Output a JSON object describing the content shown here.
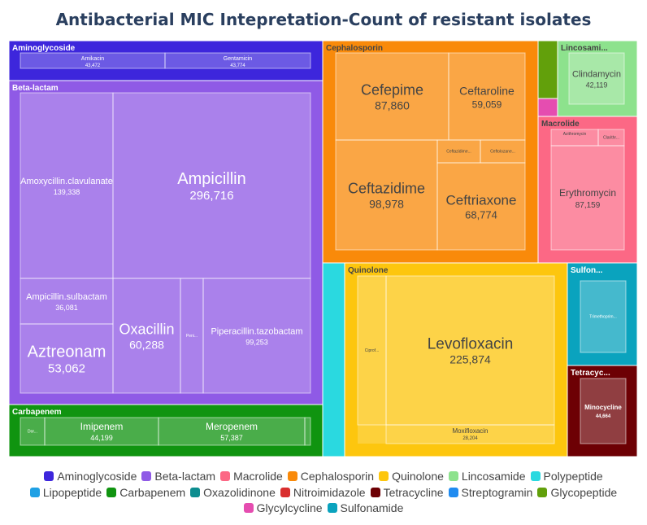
{
  "title": "Antibacterial MIC Intepretation-Count of resistant isolates",
  "chart_data": {
    "type": "treemap",
    "measure": "Count of resistant isolates",
    "groups": [
      {
        "name": "Aminoglycoside",
        "label": "Aminoglycoside",
        "color": "#3d26dc",
        "children": [
          {
            "name": "Amikacin",
            "value": 43472
          },
          {
            "name": "Gentamicin",
            "value": 43774
          }
        ]
      },
      {
        "name": "Beta-lactam",
        "label": "Beta-lactam",
        "color": "#8f5ae6",
        "children": [
          {
            "name": "Amoxycillin.clavulanate",
            "value": 139338
          },
          {
            "name": "Ampicillin",
            "value": 296716
          },
          {
            "name": "Ampicillin.sulbactam",
            "value": 36081
          },
          {
            "name": "Aztreonam",
            "value": 53062
          },
          {
            "name": "Oxacillin",
            "value": 60288
          },
          {
            "name": "Peni...",
            "value": null
          },
          {
            "name": "Piperacillin.tazobactam",
            "value": 99253
          }
        ]
      },
      {
        "name": "Carbapenem",
        "label": "Carbapenem",
        "color": "#109410",
        "children": [
          {
            "name": "Dor...",
            "value": null
          },
          {
            "name": "Imipenem",
            "value": 44199
          },
          {
            "name": "Meropenem",
            "value": 57387
          },
          {
            "name": "",
            "value": null
          }
        ]
      },
      {
        "name": "Cephalosporin",
        "label": "Cephalosporin",
        "color": "#f98a0a",
        "children": [
          {
            "name": "Cefepime",
            "value": 87860
          },
          {
            "name": "Ceftaroline",
            "value": 59059
          },
          {
            "name": "Ceftazidime",
            "value": 98978
          },
          {
            "name": "Ceftazidime...",
            "value": null
          },
          {
            "name": "Ceftolozane...",
            "value": null
          },
          {
            "name": "Ceftriaxone",
            "value": 68774
          }
        ]
      },
      {
        "name": "Glycopeptide",
        "label": "",
        "color": "#62a00b",
        "children": []
      },
      {
        "name": "Glycylcycline",
        "label": "",
        "color": "#e54db0",
        "children": []
      },
      {
        "name": "Lincosamide",
        "label": "Lincosami...",
        "color": "#8de28d",
        "children": [
          {
            "name": "Clindamycin",
            "value": 42119
          }
        ]
      },
      {
        "name": "Macrolide",
        "label": "Macrolide",
        "color": "#fc6885",
        "children": [
          {
            "name": "Azithromycin",
            "value": null
          },
          {
            "name": "Clarithr...",
            "value": null
          },
          {
            "name": "Erythromycin",
            "value": 87159
          }
        ]
      },
      {
        "name": "Polypeptide",
        "label": "",
        "color": "#2ad9e0",
        "children": []
      },
      {
        "name": "Quinolone",
        "label": "Quinolone",
        "color": "#fdc60e",
        "children": [
          {
            "name": "Ciprof...",
            "value": null
          },
          {
            "name": "Levofloxacin",
            "value": 225874
          },
          {
            "name": "Moxifloxacin",
            "value": 28204
          }
        ]
      },
      {
        "name": "Sulfonamide",
        "label": "Sulfon...",
        "color": "#0aa3be",
        "children": [
          {
            "name": "Trimethoprim...",
            "value": null
          }
        ]
      },
      {
        "name": "Tetracycline",
        "label": "Tetracyc...",
        "color": "#6d0004",
        "children": [
          {
            "name": "Minocycline",
            "value": 44664
          }
        ]
      }
    ],
    "legend": [
      {
        "name": "Aminoglycoside",
        "color": "#3d26dc"
      },
      {
        "name": "Beta-lactam",
        "color": "#8f5ae6"
      },
      {
        "name": "Macrolide",
        "color": "#fc6885"
      },
      {
        "name": "Cephalosporin",
        "color": "#f98a0a"
      },
      {
        "name": "Quinolone",
        "color": "#fdc60e"
      },
      {
        "name": "Lincosamide",
        "color": "#8de28d"
      },
      {
        "name": "Polypeptide",
        "color": "#2ad9e0"
      },
      {
        "name": "Lipopeptide",
        "color": "#1fa0e4"
      },
      {
        "name": "Carbapenem",
        "color": "#109410"
      },
      {
        "name": "Oxazolidinone",
        "color": "#0d8d8f"
      },
      {
        "name": "Nitroimidazole",
        "color": "#d92e2e"
      },
      {
        "name": "Tetracycline",
        "color": "#6d0004"
      },
      {
        "name": "Streptogramin",
        "color": "#1f8bf0"
      },
      {
        "name": "Glycopeptide",
        "color": "#62a00b"
      },
      {
        "name": "Glycylcycline",
        "color": "#e54db0"
      },
      {
        "name": "Sulfonamide",
        "color": "#0aa3be"
      }
    ],
    "legend_position": "bottom"
  }
}
